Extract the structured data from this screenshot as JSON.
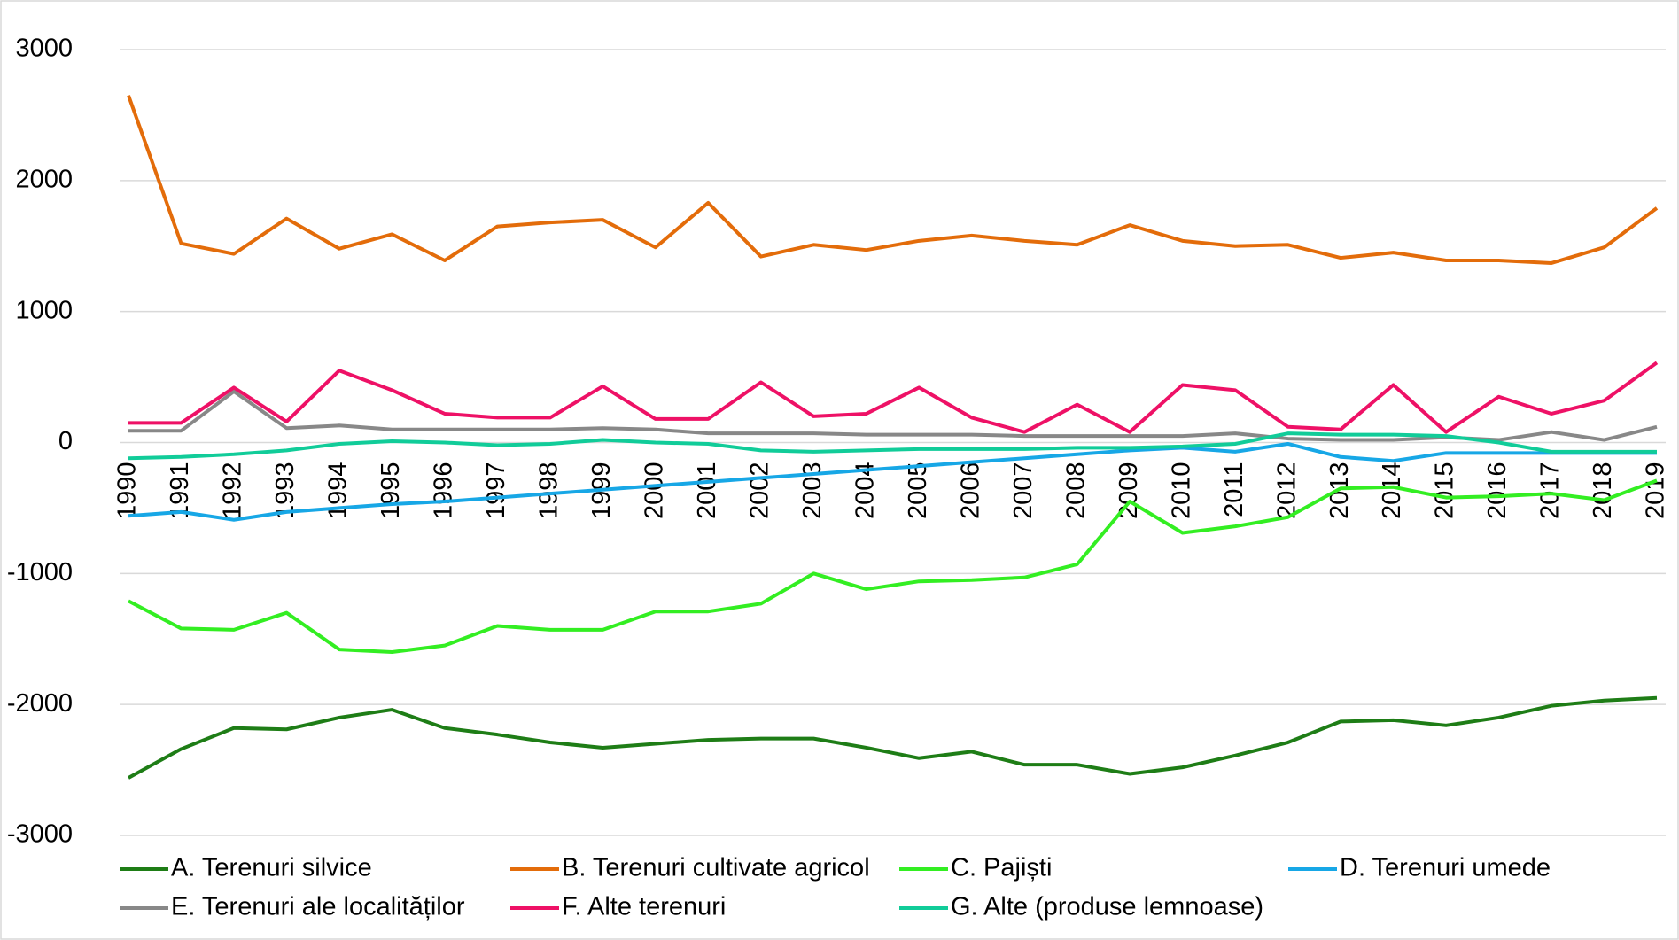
{
  "chart_data": {
    "type": "line",
    "categories": [
      "1990",
      "1991",
      "1992",
      "1993",
      "1994",
      "1995",
      "1996",
      "1997",
      "1998",
      "1999",
      "2000",
      "2001",
      "2002",
      "2003",
      "2004",
      "2005",
      "2006",
      "2007",
      "2008",
      "2009",
      "2010",
      "2011",
      "2012",
      "2013",
      "2014",
      "2015",
      "2016",
      "2017",
      "2018",
      "2019"
    ],
    "ylim": [
      -3000,
      3000
    ],
    "yticks": [
      3000,
      2000,
      1000,
      0,
      -1000,
      -2000,
      -3000
    ],
    "grid": true,
    "series": [
      {
        "name": "A. Terenuri silvice",
        "color": "#1e7d16",
        "values": [
          -2560,
          -2340,
          -2180,
          -2190,
          -2100,
          -2040,
          -2180,
          -2230,
          -2290,
          -2330,
          -2300,
          -2270,
          -2260,
          -2260,
          -2330,
          -2410,
          -2360,
          -2460,
          -2460,
          -2530,
          -2480,
          -2390,
          -2290,
          -2130,
          -2120,
          -2160,
          -2100,
          -2010,
          -1970,
          -1950
        ]
      },
      {
        "name": "B. Terenuri cultivate agricol",
        "color": "#e36c0a",
        "values": [
          2650,
          1520,
          1440,
          1710,
          1480,
          1590,
          1390,
          1650,
          1680,
          1700,
          1490,
          1830,
          1420,
          1510,
          1470,
          1540,
          1580,
          1540,
          1510,
          1660,
          1540,
          1500,
          1510,
          1410,
          1450,
          1390,
          1390,
          1370,
          1490,
          1790
        ]
      },
      {
        "name": "C. Pajiști",
        "color": "#33ee22",
        "values": [
          -1210,
          -1420,
          -1430,
          -1300,
          -1580,
          -1600,
          -1550,
          -1400,
          -1430,
          -1430,
          -1290,
          -1290,
          -1230,
          -1000,
          -1120,
          -1060,
          -1050,
          -1030,
          -930,
          -450,
          -690,
          -640,
          -570,
          -350,
          -340,
          -420,
          -410,
          -390,
          -440,
          -290
        ]
      },
      {
        "name": "D. Terenuri umede",
        "color": "#17a7e6",
        "values": [
          -560,
          -530,
          -590,
          -530,
          -500,
          -470,
          -450,
          -420,
          -390,
          -360,
          -330,
          -300,
          -270,
          -240,
          -210,
          -180,
          -150,
          -120,
          -90,
          -60,
          -40,
          -70,
          -10,
          -110,
          -140,
          -80,
          -80,
          -80,
          -80,
          -80
        ]
      },
      {
        "name": "E. Terenuri ale localităților",
        "color": "#888888",
        "values": [
          90,
          90,
          390,
          110,
          130,
          100,
          100,
          100,
          100,
          110,
          100,
          70,
          70,
          70,
          60,
          60,
          60,
          50,
          50,
          50,
          50,
          70,
          30,
          20,
          20,
          40,
          20,
          80,
          20,
          120
        ]
      },
      {
        "name": "F. Alte terenuri",
        "color": "#ee1166",
        "values": [
          150,
          150,
          420,
          160,
          550,
          400,
          220,
          190,
          190,
          430,
          180,
          180,
          460,
          200,
          220,
          420,
          190,
          80,
          290,
          80,
          440,
          400,
          120,
          100,
          440,
          80,
          350,
          220,
          320,
          610
        ]
      },
      {
        "name": "G. Alte (produse lemnoase)",
        "color": "#11cc99",
        "values": [
          -120,
          -110,
          -90,
          -60,
          -10,
          10,
          0,
          -20,
          -10,
          20,
          0,
          -10,
          -60,
          -70,
          -60,
          -50,
          -50,
          -50,
          -40,
          -40,
          -30,
          -10,
          70,
          60,
          60,
          50,
          0,
          -70,
          -70,
          -70
        ]
      }
    ]
  }
}
